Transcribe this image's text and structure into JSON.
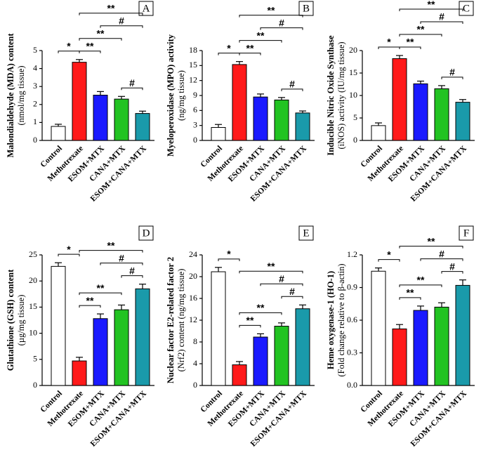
{
  "chart_data": [
    {
      "type": "bar",
      "panel": "A",
      "ylabel": "Malondialdehyde (MDA) content",
      "ylabel_unit": "(nmol/mg tissue)",
      "categories": [
        "Control",
        "Methotrexate",
        "ESOM+MTX",
        "CANA+MTX",
        "ESOM+CANA+MTX"
      ],
      "values": [
        0.78,
        4.35,
        2.52,
        2.3,
        1.5
      ],
      "errors": [
        0.12,
        0.15,
        0.2,
        0.15,
        0.13
      ],
      "colors": [
        "#ffffff",
        "#ff1a1a",
        "#1a1aff",
        "#22c322",
        "#1a9aaa"
      ],
      "ylim": [
        0,
        5
      ],
      "yticks": [
        0,
        1,
        2,
        3,
        4,
        5
      ],
      "annotations": [
        {
          "label": "*",
          "from": 0,
          "to": 1
        },
        {
          "label": "**",
          "from": 1,
          "to": 2
        },
        {
          "label": "**",
          "from": 1,
          "to": 3
        },
        {
          "label": "**",
          "from": 1,
          "to": 4
        },
        {
          "label": "#",
          "from": 2,
          "to": 4
        },
        {
          "label": "#",
          "from": 3,
          "to": 4
        }
      ]
    },
    {
      "type": "bar",
      "panel": "B",
      "ylabel": "Myeloperoxidase (MPO) activity",
      "ylabel_unit": "(ng/mg tissue)",
      "categories": [
        "Control",
        "Methotrexate",
        "ESOM+MTX",
        "CANA+MTX",
        "ESOM+CANA+MTX"
      ],
      "values": [
        2.6,
        15.2,
        8.7,
        8.1,
        5.5
      ],
      "errors": [
        0.6,
        0.6,
        0.6,
        0.5,
        0.4
      ],
      "colors": [
        "#ffffff",
        "#ff1a1a",
        "#1a1aff",
        "#22c322",
        "#1a9aaa"
      ],
      "ylim": [
        0,
        18
      ],
      "yticks": [
        0,
        3,
        6,
        9,
        12,
        15,
        18
      ],
      "annotations": [
        {
          "label": "*",
          "from": 0,
          "to": 1
        },
        {
          "label": "**",
          "from": 1,
          "to": 2
        },
        {
          "label": "**",
          "from": 1,
          "to": 3
        },
        {
          "label": "**",
          "from": 1,
          "to": 4
        },
        {
          "label": "#",
          "from": 2,
          "to": 4
        },
        {
          "label": "#",
          "from": 3,
          "to": 4
        }
      ]
    },
    {
      "type": "bar",
      "panel": "C",
      "ylabel": "Inducible Nitric Oxide Synthase",
      "ylabel_unit": "(iNOS) activity (IU/mg tissue)",
      "categories": [
        "Control",
        "Methotrexate",
        "ESOM+MTX",
        "CANA+MTX",
        "ESOM+CANA+MTX"
      ],
      "values": [
        3.3,
        18.2,
        12.6,
        11.5,
        8.5
      ],
      "errors": [
        0.6,
        0.7,
        0.6,
        0.7,
        0.6
      ],
      "colors": [
        "#ffffff",
        "#ff1a1a",
        "#1a1aff",
        "#22c322",
        "#1a9aaa"
      ],
      "ylim": [
        0,
        20
      ],
      "yticks": [
        0,
        5,
        10,
        15,
        20
      ],
      "annotations": [
        {
          "label": "*",
          "from": 0,
          "to": 1
        },
        {
          "label": "**",
          "from": 1,
          "to": 2
        },
        {
          "label": "**",
          "from": 1,
          "to": 3
        },
        {
          "label": "**",
          "from": 1,
          "to": 4
        },
        {
          "label": "#",
          "from": 2,
          "to": 4
        },
        {
          "label": "#",
          "from": 3,
          "to": 4
        }
      ]
    },
    {
      "type": "bar",
      "panel": "D",
      "ylabel": "Glutathione (GSH) content",
      "ylabel_unit": "(µg/mg tissue)",
      "categories": [
        "Control",
        "Methotrexate",
        "ESOM+MTX",
        "CANA+MTX",
        "ESOM+CANA+MTX"
      ],
      "values": [
        22.8,
        4.7,
        12.8,
        14.5,
        18.5
      ],
      "errors": [
        0.7,
        0.7,
        0.9,
        0.9,
        0.9
      ],
      "colors": [
        "#ffffff",
        "#ff1a1a",
        "#1a1aff",
        "#22c322",
        "#1a9aaa"
      ],
      "ylim": [
        0,
        25
      ],
      "yticks": [
        0,
        5,
        10,
        15,
        20,
        25
      ],
      "annotations": [
        {
          "label": "*",
          "from": 0,
          "to": 1
        },
        {
          "label": "**",
          "from": 1,
          "to": 2
        },
        {
          "label": "**",
          "from": 1,
          "to": 3
        },
        {
          "label": "**",
          "from": 1,
          "to": 4
        },
        {
          "label": "#",
          "from": 2,
          "to": 4
        },
        {
          "label": "#",
          "from": 3,
          "to": 4
        }
      ]
    },
    {
      "type": "bar",
      "panel": "E",
      "ylabel": "Nuclear factor E2-related factor 2",
      "ylabel_unit": "(Nrf2) content (ng/mg tissue)",
      "categories": [
        "Control",
        "Methotrexate",
        "ESOM+MTX",
        "CANA+MTX",
        "ESOM+CANA+MTX"
      ],
      "values": [
        20.9,
        3.8,
        8.9,
        10.9,
        14.1
      ],
      "errors": [
        0.8,
        0.6,
        0.6,
        0.6,
        0.7
      ],
      "colors": [
        "#ffffff",
        "#ff1a1a",
        "#1a1aff",
        "#22c322",
        "#1a9aaa"
      ],
      "ylim": [
        0,
        24
      ],
      "yticks": [
        0,
        4,
        8,
        12,
        16,
        20,
        24
      ],
      "annotations": [
        {
          "label": "*",
          "from": 0,
          "to": 1
        },
        {
          "label": "**",
          "from": 1,
          "to": 2
        },
        {
          "label": "**",
          "from": 1,
          "to": 3
        },
        {
          "label": "**",
          "from": 1,
          "to": 4
        },
        {
          "label": "#",
          "from": 2,
          "to": 4
        },
        {
          "label": "#",
          "from": 3,
          "to": 4
        }
      ]
    },
    {
      "type": "bar",
      "panel": "F",
      "ylabel": "Heme oxygenase-1 (HO-1)",
      "ylabel_unit": "(Fold change relative to β-actin)",
      "categories": [
        "Control",
        "Methotrexate",
        "ESOM+MTX",
        "CANA+MTX",
        "ESOM+CANA+MTX"
      ],
      "values": [
        1.05,
        0.52,
        0.69,
        0.72,
        0.92
      ],
      "errors": [
        0.03,
        0.04,
        0.04,
        0.04,
        0.05
      ],
      "colors": [
        "#ffffff",
        "#ff1a1a",
        "#1a1aff",
        "#22c322",
        "#1a9aaa"
      ],
      "ylim": [
        0,
        1.2
      ],
      "yticks": [
        {
          "value": 0,
          "label": "0.0"
        },
        0.3,
        0.6,
        0.9,
        1.2
      ],
      "annotations": [
        {
          "label": "*",
          "from": 0,
          "to": 1
        },
        {
          "label": "**",
          "from": 1,
          "to": 2
        },
        {
          "label": "**",
          "from": 1,
          "to": 3
        },
        {
          "label": "**",
          "from": 1,
          "to": 4
        },
        {
          "label": "#",
          "from": 2,
          "to": 4
        },
        {
          "label": "#",
          "from": 3,
          "to": 4
        }
      ]
    }
  ]
}
